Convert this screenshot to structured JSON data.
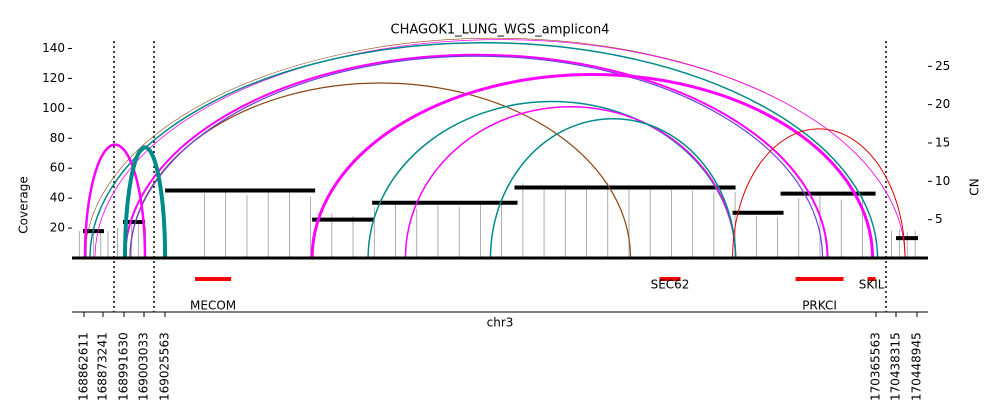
{
  "chart_data": {
    "type": "amplicon",
    "title": "CHAGOK1_LUNG_WGS_amplicon4",
    "ylabel": "Coverage",
    "y2label": "CN",
    "xlabel": "chr3",
    "ylim": [
      0,
      145
    ],
    "yticks": [
      20,
      40,
      60,
      80,
      100,
      120,
      140
    ],
    "y2lim": [
      0,
      28.3
    ],
    "y2ticks": [
      5,
      10,
      15,
      20,
      25
    ],
    "intervals": [
      [
        168857580,
        168879390
      ],
      [
        168985930,
        169008733
      ],
      [
        169004828,
        170384400
      ],
      [
        170433255,
        170452993
      ]
    ],
    "xticks": [
      168862611,
      168873241,
      168991630,
      169003033,
      169025563,
      170365563,
      170438315,
      170448945
    ],
    "coverage": {
      "color": "#999999",
      "x": [
        168860000,
        168864000,
        168868000,
        168872000,
        168876000,
        168988000,
        168992000,
        168996000,
        169000000,
        169004000,
        169100000,
        169140000,
        169180000,
        169220000,
        169260000,
        169300000,
        169340000,
        169380000,
        169420000,
        169460000,
        169500000,
        169540000,
        169580000,
        169620000,
        169660000,
        169700000,
        169740000,
        169780000,
        169820000,
        169860000,
        169900000,
        169940000,
        169980000,
        170020000,
        170060000,
        170100000,
        170140000,
        170180000,
        170220000,
        170260000,
        170300000,
        170340000,
        170436000,
        170440000,
        170444000,
        170448000
      ],
      "values": [
        18,
        18,
        19,
        17,
        18,
        20,
        22,
        24,
        23,
        21,
        43,
        44,
        42,
        45,
        44,
        41,
        30,
        28,
        34,
        36,
        33,
        35,
        34,
        38,
        36,
        50,
        48,
        49,
        47,
        50,
        46,
        48,
        47,
        45,
        44,
        44,
        28,
        27,
        40,
        42,
        39,
        41,
        18,
        19,
        17,
        18
      ]
    },
    "segments": {
      "color": "#000000",
      "start": [
        168862052,
        168991060,
        169025735,
        169302830,
        169415930,
        169684255,
        170095185,
        170185665,
        170438315
      ],
      "end": [
        168873791,
        169003600,
        169308485,
        169419700,
        169689910,
        170100840,
        170191320,
        170364740,
        170449447
      ],
      "values": [
        3.5,
        4.7,
        8.8,
        5.0,
        7.2,
        9.2,
        5.9,
        8.4,
        2.6
      ]
    },
    "arcs": [
      {
        "start": 168863170,
        "end": 170442869,
        "color": "#8b4513",
        "width": 0.6
      },
      {
        "start": 168868760,
        "end": 170442869,
        "color": "#ff00ff",
        "width": 0.8
      },
      {
        "start": 168865965,
        "end": 170368510,
        "color": "#008b8b",
        "width": 1.5
      },
      {
        "start": 168992200,
        "end": 170274260,
        "color": "#ff00ff",
        "width": 2
      },
      {
        "start": 168995050,
        "end": 169902915,
        "color": "#8b4513",
        "width": 1.2
      },
      {
        "start": 168995050,
        "end": 170264835,
        "color": "#6a3ddb",
        "width": 1.2
      },
      {
        "start": 169302830,
        "end": 170359085,
        "color": "#ff00ff",
        "width": 3
      },
      {
        "start": 169408390,
        "end": 170100840,
        "color": "#008b8b",
        "width": 1.5
      },
      {
        "start": 169478790,
        "end": 170100840,
        "color": "#ff00ff",
        "width": 1.5
      },
      {
        "start": 169639015,
        "end": 170100840,
        "color": "#008b8b",
        "width": 1.5
      },
      {
        "start": 170095185,
        "end": 170442869,
        "color": "#e00000",
        "width": 1
      },
      {
        "start": 168863170,
        "end": 169003600,
        "color": "#ff00ff",
        "width": 2.5
      },
      {
        "start": 168992200,
        "end": 169025735,
        "color": "#008b8b",
        "width": 4
      }
    ],
    "genes": {
      "color": "#ff0000",
      "names": [
        "MECOM",
        "SEC62",
        "PRKCI",
        "SKIL"
      ],
      "start": [
        169082285,
        169957580,
        170213940,
        170349660
      ],
      "end": [
        169150145,
        169997165,
        170304420,
        170364740
      ]
    }
  }
}
